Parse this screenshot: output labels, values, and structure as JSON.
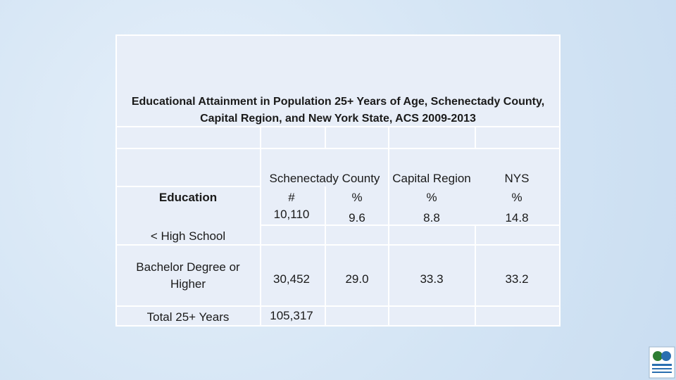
{
  "title": "Educational Attainment in Population 25+ Years of Age, Schenectady County, Capital Region, and New York State, ACS 2009-2013",
  "header": {
    "row_label": "Education",
    "groups": [
      "Schenectady County",
      "Capital Region",
      "NYS"
    ],
    "units": [
      "#",
      "%",
      "%",
      "%"
    ]
  },
  "rows": [
    {
      "label": "< High School",
      "cells": [
        "10,110",
        "9.6",
        "8.8",
        "14.8"
      ]
    },
    {
      "label": "Bachelor Degree or Higher",
      "cells": [
        "30,452",
        "29.0",
        "33.3",
        "33.2"
      ]
    },
    {
      "label": "Total 25+ Years",
      "cells": [
        "105,317"
      ]
    }
  ]
}
